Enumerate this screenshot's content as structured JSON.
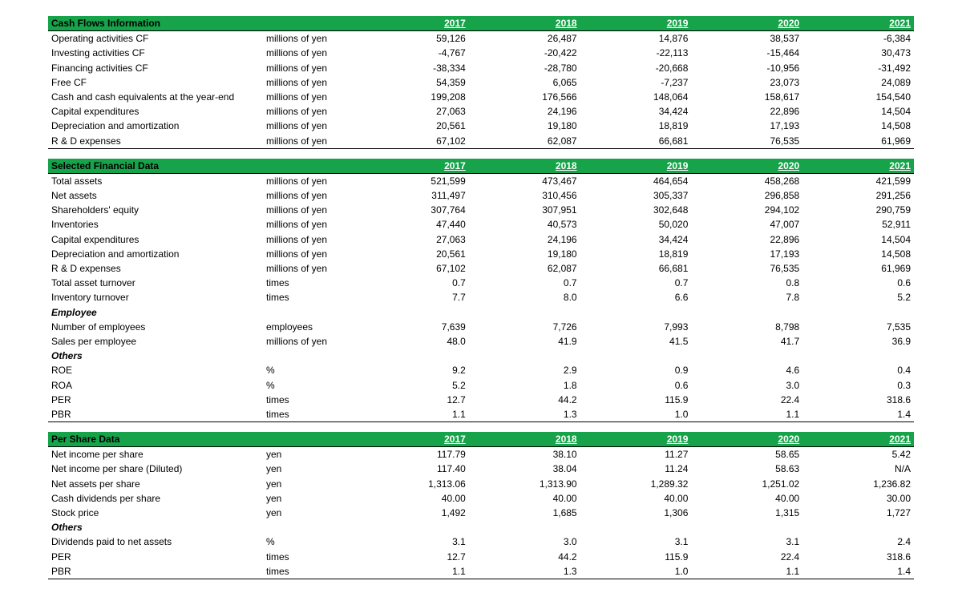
{
  "years": [
    "2017",
    "2018",
    "2019",
    "2020",
    "2021"
  ],
  "colors": {
    "header_bg": "#16a34a",
    "header_text": "#ffffff"
  },
  "sections": [
    {
      "title": "Cash Flows Information",
      "rows": [
        {
          "label": "Operating activities CF",
          "unit": "millions of yen",
          "v": [
            "59,126",
            "26,487",
            "14,876",
            "38,537",
            "-6,384"
          ]
        },
        {
          "label": "Investing activities CF",
          "unit": "millions of yen",
          "v": [
            "-4,767",
            "-20,422",
            "-22,113",
            "-15,464",
            "30,473"
          ]
        },
        {
          "label": "Financing activities CF",
          "unit": "millions of yen",
          "v": [
            "-38,334",
            "-28,780",
            "-20,668",
            "-10,956",
            "-31,492"
          ]
        },
        {
          "label": "Free CF",
          "unit": "millions of yen",
          "v": [
            "54,359",
            "6,065",
            "-7,237",
            "23,073",
            "24,089"
          ]
        },
        {
          "label": "Cash and cash equivalents at the year-end",
          "unit": "millions of yen",
          "v": [
            "199,208",
            "176,566",
            "148,064",
            "158,617",
            "154,540"
          ]
        },
        {
          "label": "Capital expenditures",
          "unit": "millions of yen",
          "v": [
            "27,063",
            "24,196",
            "34,424",
            "22,896",
            "14,504"
          ]
        },
        {
          "label": "Depreciation and amortization",
          "unit": "millions of yen",
          "v": [
            "20,561",
            "19,180",
            "18,819",
            "17,193",
            "14,508"
          ]
        },
        {
          "label": "R & D expenses",
          "unit": "millions of yen",
          "v": [
            "67,102",
            "62,087",
            "66,681",
            "76,535",
            "61,969"
          ],
          "bottom": true
        }
      ]
    },
    {
      "title": "Selected Financial Data",
      "rows": [
        {
          "label": "Total assets",
          "unit": "millions of yen",
          "v": [
            "521,599",
            "473,467",
            "464,654",
            "458,268",
            "421,599"
          ]
        },
        {
          "label": "Net assets",
          "unit": "millions of yen",
          "v": [
            "311,497",
            "310,456",
            "305,337",
            "296,858",
            "291,256"
          ]
        },
        {
          "label": "Shareholders' equity",
          "unit": "millions of yen",
          "v": [
            "307,764",
            "307,951",
            "302,648",
            "294,102",
            "290,759"
          ]
        },
        {
          "label": "Inventories",
          "unit": "millions of yen",
          "v": [
            "47,440",
            "40,573",
            "50,020",
            "47,007",
            "52,911"
          ]
        },
        {
          "label": "Capital expenditures",
          "unit": "millions of yen",
          "v": [
            "27,063",
            "24,196",
            "34,424",
            "22,896",
            "14,504"
          ]
        },
        {
          "label": "Depreciation and amortization",
          "unit": "millions of yen",
          "v": [
            "20,561",
            "19,180",
            "18,819",
            "17,193",
            "14,508"
          ]
        },
        {
          "label": "R & D expenses",
          "unit": "millions of yen",
          "v": [
            "67,102",
            "62,087",
            "66,681",
            "76,535",
            "61,969"
          ]
        },
        {
          "label": "Total asset turnover",
          "unit": "times",
          "v": [
            "0.7",
            "0.7",
            "0.7",
            "0.8",
            "0.6"
          ]
        },
        {
          "label": "Inventory turnover",
          "unit": "times",
          "v": [
            "7.7",
            "8.0",
            "6.6",
            "7.8",
            "5.2"
          ]
        },
        {
          "subhead": "Employee"
        },
        {
          "label": "Number of employees",
          "unit": "employees",
          "v": [
            "7,639",
            "7,726",
            "7,993",
            "8,798",
            "7,535"
          ]
        },
        {
          "label": "Sales per employee",
          "unit": "millions of yen",
          "v": [
            "48.0",
            "41.9",
            "41.5",
            "41.7",
            "36.9"
          ]
        },
        {
          "subhead": "Others"
        },
        {
          "label": "ROE",
          "unit": "%",
          "v": [
            "9.2",
            "2.9",
            "0.9",
            "4.6",
            "0.4"
          ]
        },
        {
          "label": "ROA",
          "unit": "%",
          "v": [
            "5.2",
            "1.8",
            "0.6",
            "3.0",
            "0.3"
          ]
        },
        {
          "label": "PER",
          "unit": "times",
          "v": [
            "12.7",
            "44.2",
            "115.9",
            "22.4",
            "318.6"
          ]
        },
        {
          "label": "PBR",
          "unit": "times",
          "v": [
            "1.1",
            "1.3",
            "1.0",
            "1.1",
            "1.4"
          ],
          "bottom": true
        }
      ]
    },
    {
      "title": "Per Share Data",
      "rows": [
        {
          "label": "Net income per share",
          "unit": "yen",
          "v": [
            "117.79",
            "38.10",
            "11.27",
            "58.65",
            "5.42"
          ]
        },
        {
          "label": "Net income per share (Diluted)",
          "unit": "yen",
          "v": [
            "117.40",
            "38.04",
            "11.24",
            "58.63",
            "N/A"
          ]
        },
        {
          "label": "Net assets per share",
          "unit": "yen",
          "v": [
            "1,313.06",
            "1,313.90",
            "1,289.32",
            "1,251.02",
            "1,236.82"
          ]
        },
        {
          "label": "Cash dividends per share",
          "unit": "yen",
          "v": [
            "40.00",
            "40.00",
            "40.00",
            "40.00",
            "30.00"
          ]
        },
        {
          "label": "Stock price",
          "unit": "yen",
          "v": [
            "1,492",
            "1,685",
            "1,306",
            "1,315",
            "1,727"
          ]
        },
        {
          "subhead": "Others"
        },
        {
          "label": "Dividends paid to net assets",
          "unit": "%",
          "v": [
            "3.1",
            "3.0",
            "3.1",
            "3.1",
            "2.4"
          ]
        },
        {
          "label": "PER",
          "unit": "times",
          "v": [
            "12.7",
            "44.2",
            "115.9",
            "22.4",
            "318.6"
          ]
        },
        {
          "label": "PBR",
          "unit": "times",
          "v": [
            "1.1",
            "1.3",
            "1.0",
            "1.1",
            "1.4"
          ],
          "bottom": true
        }
      ]
    }
  ]
}
